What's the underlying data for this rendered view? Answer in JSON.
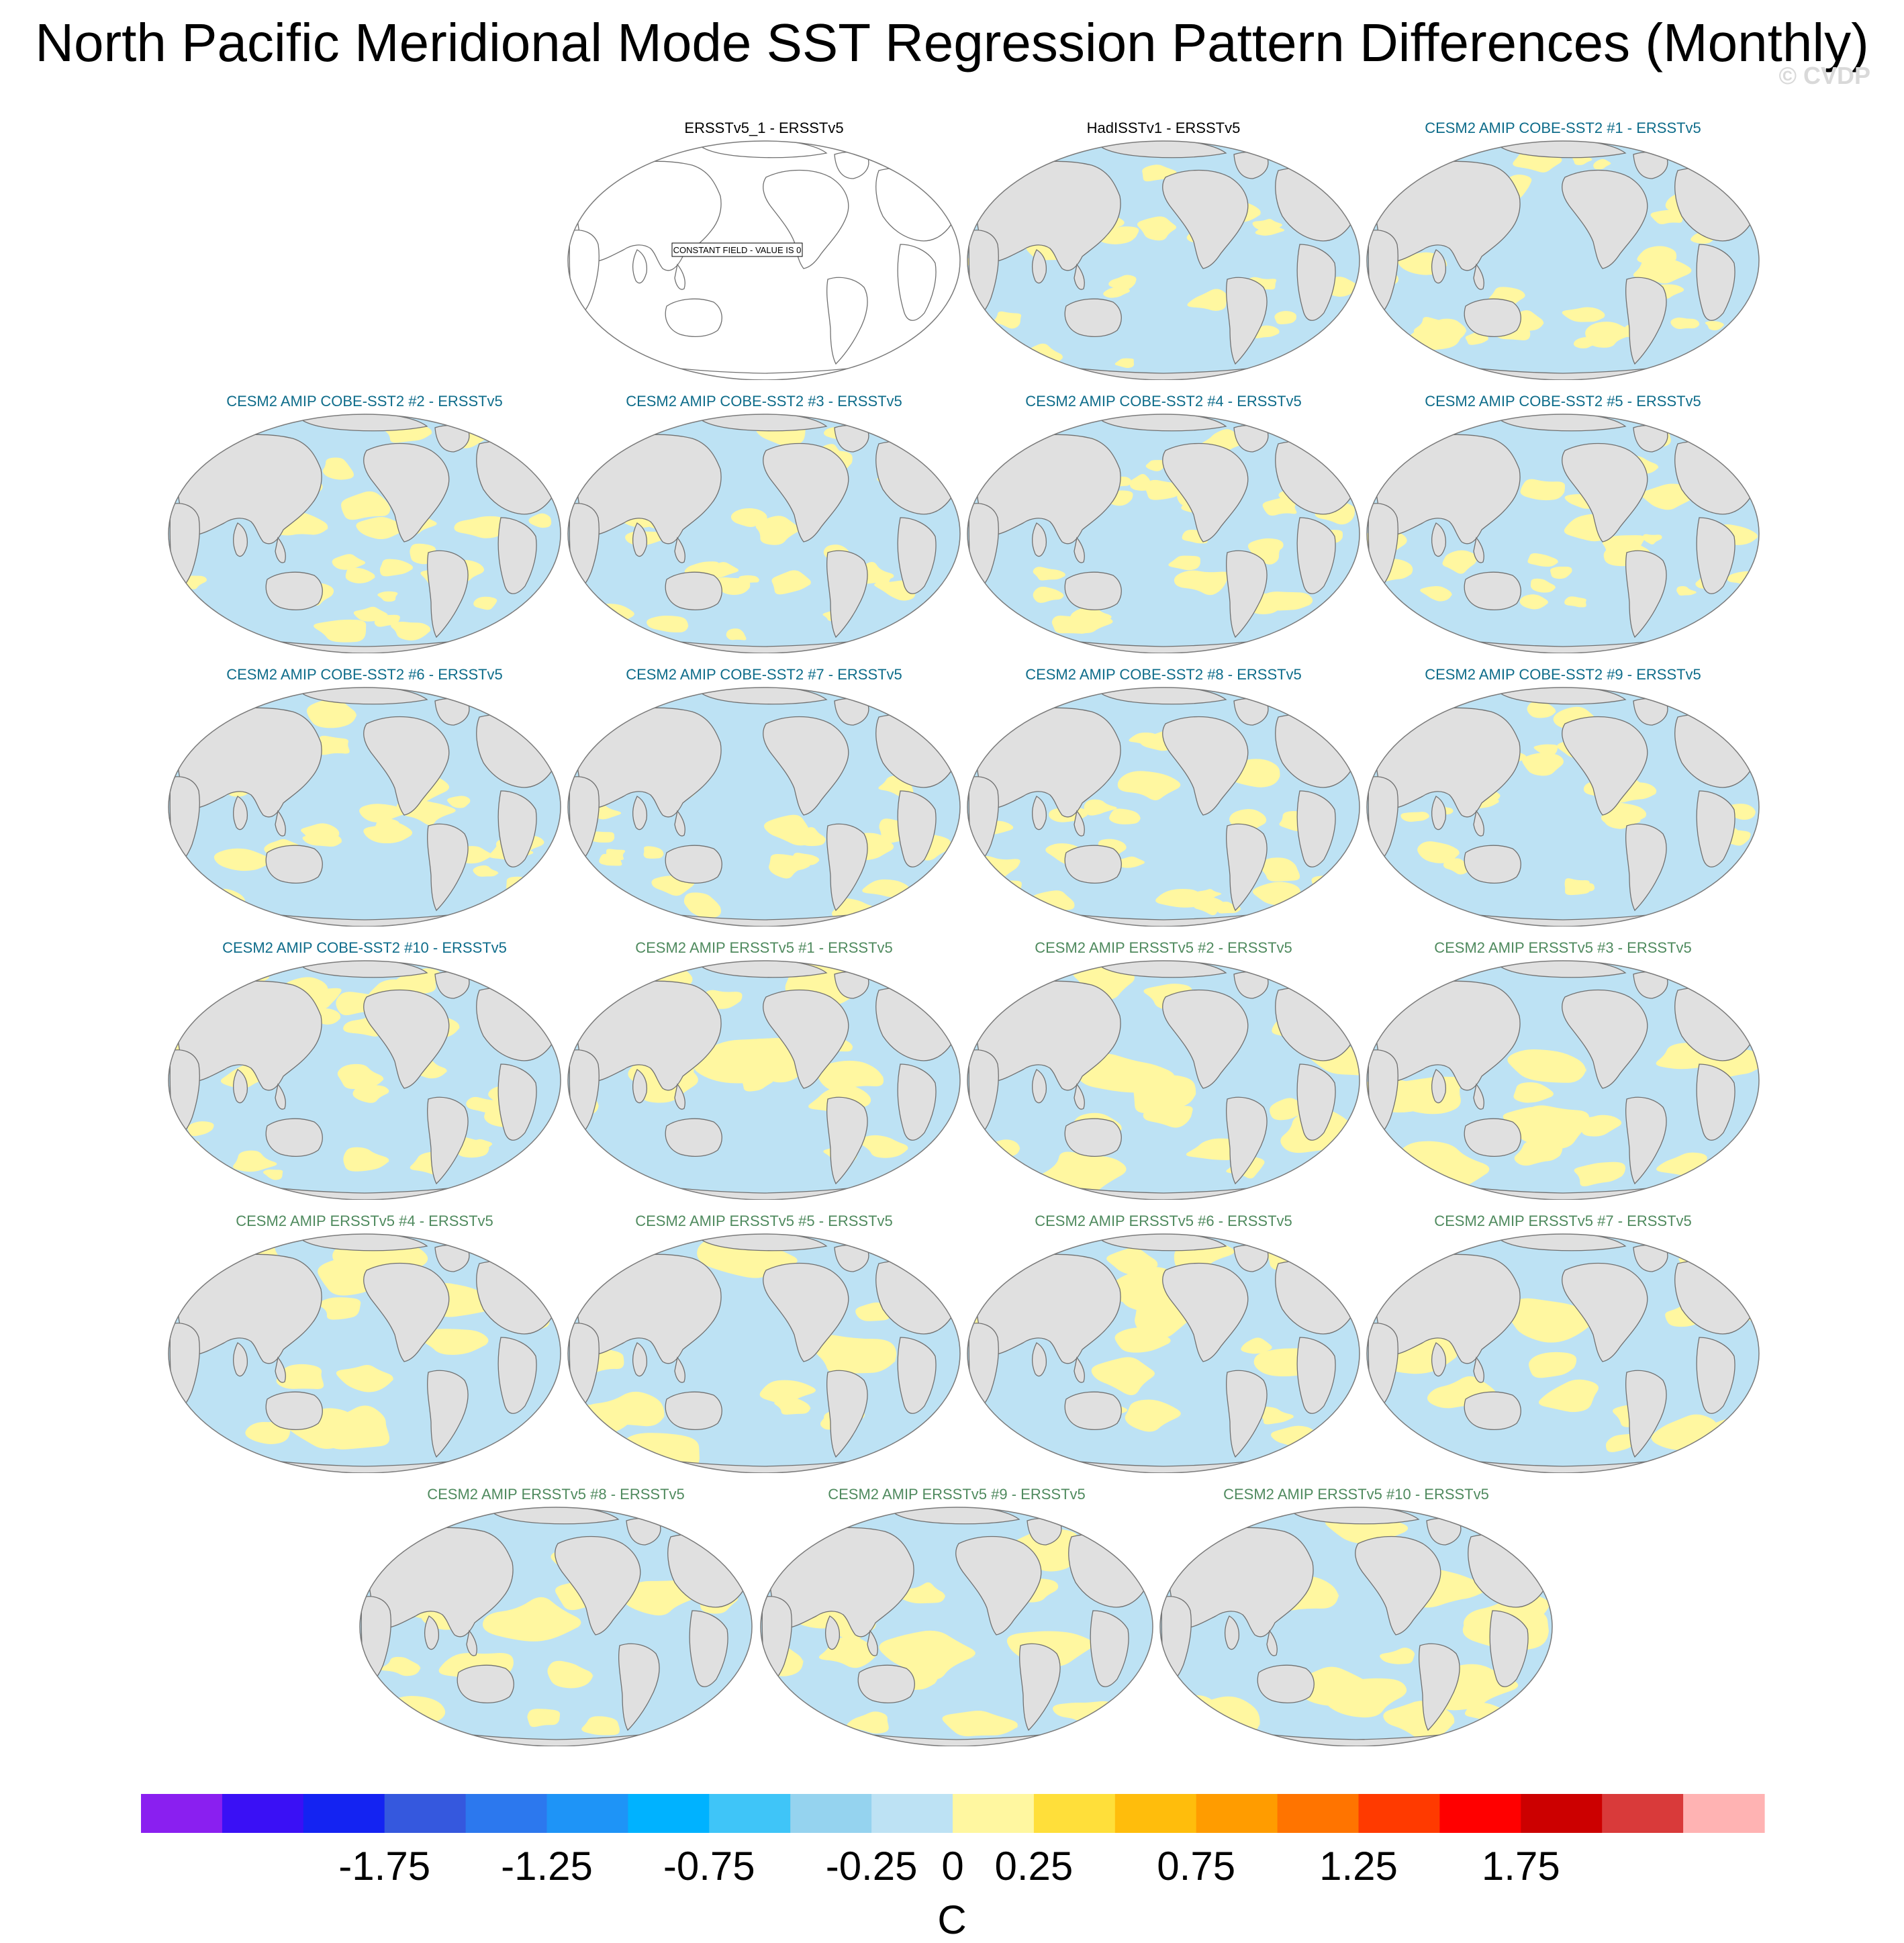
{
  "title": "North Pacific Meridional Mode SST Regression Pattern Differences (Monthly)",
  "copyright": "© CVDP",
  "colors": {
    "land": "#e0e0e0",
    "ocean_neg": "#bde2f4",
    "ocean_pos": "#fff7a0",
    "coast": "#707070",
    "title_obs": "#000000",
    "title_cobe": "#0e6c8a",
    "title_ersst": "#4f8a5e"
  },
  "panels": [
    {
      "title": "ERSSTv5_1 - ERSSTv5",
      "group": "obs",
      "constant": true
    },
    {
      "title": "HadISSTv1 - ERSSTv5",
      "group": "obs"
    },
    {
      "title": "CESM2 AMIP COBE-SST2 #1 - ERSSTv5",
      "group": "cobe"
    },
    {
      "title": "CESM2 AMIP COBE-SST2 #2 - ERSSTv5",
      "group": "cobe"
    },
    {
      "title": "CESM2 AMIP COBE-SST2 #3 - ERSSTv5",
      "group": "cobe"
    },
    {
      "title": "CESM2 AMIP COBE-SST2 #4 - ERSSTv5",
      "group": "cobe"
    },
    {
      "title": "CESM2 AMIP COBE-SST2 #5 - ERSSTv5",
      "group": "cobe"
    },
    {
      "title": "CESM2 AMIP COBE-SST2 #6 - ERSSTv5",
      "group": "cobe"
    },
    {
      "title": "CESM2 AMIP COBE-SST2 #7 - ERSSTv5",
      "group": "cobe"
    },
    {
      "title": "CESM2 AMIP COBE-SST2 #8 - ERSSTv5",
      "group": "cobe"
    },
    {
      "title": "CESM2 AMIP COBE-SST2 #9 - ERSSTv5",
      "group": "cobe"
    },
    {
      "title": "CESM2 AMIP COBE-SST2 #10 - ERSSTv5",
      "group": "cobe"
    },
    {
      "title": "CESM2 AMIP ERSSTv5 #1 - ERSSTv5",
      "group": "ersst"
    },
    {
      "title": "CESM2 AMIP ERSSTv5 #2 - ERSSTv5",
      "group": "ersst"
    },
    {
      "title": "CESM2 AMIP ERSSTv5 #3 - ERSSTv5",
      "group": "ersst"
    },
    {
      "title": "CESM2 AMIP ERSSTv5 #4 - ERSSTv5",
      "group": "ersst"
    },
    {
      "title": "CESM2 AMIP ERSSTv5 #5 - ERSSTv5",
      "group": "ersst"
    },
    {
      "title": "CESM2 AMIP ERSSTv5 #6 - ERSSTv5",
      "group": "ersst"
    },
    {
      "title": "CESM2 AMIP ERSSTv5 #7 - ERSSTv5",
      "group": "ersst"
    },
    {
      "title": "CESM2 AMIP ERSSTv5 #8 - ERSSTv5",
      "group": "ersst"
    },
    {
      "title": "CESM2 AMIP ERSSTv5 #9 - ERSSTv5",
      "group": "ersst"
    },
    {
      "title": "CESM2 AMIP ERSSTv5 #10 - ERSSTv5",
      "group": "ersst"
    }
  ],
  "constant_field_text": "CONSTANT FIELD - VALUE IS 0",
  "colorbar": {
    "colors": [
      "#8a1ff0",
      "#3a10f5",
      "#1423f2",
      "#3558de",
      "#2c78ee",
      "#1e94f7",
      "#00b2ff",
      "#3fc5f8",
      "#95d3ef",
      "#bde2f4",
      "#fff7a0",
      "#ffdf3a",
      "#ffbd0c",
      "#ff9c00",
      "#ff7400",
      "#ff3a00",
      "#ff0000",
      "#cc0000",
      "#d93a3a",
      "#ffb3b3"
    ],
    "tick_values": [
      -1.75,
      -1.25,
      -0.75,
      -0.25,
      0,
      0.25,
      0.75,
      1.25,
      1.75
    ],
    "tick_labels": [
      "-1.75",
      "-1.25",
      "-0.75",
      "-0.25",
      "0",
      "0.25",
      "0.75",
      "1.25",
      "1.75"
    ],
    "unit": "C"
  }
}
